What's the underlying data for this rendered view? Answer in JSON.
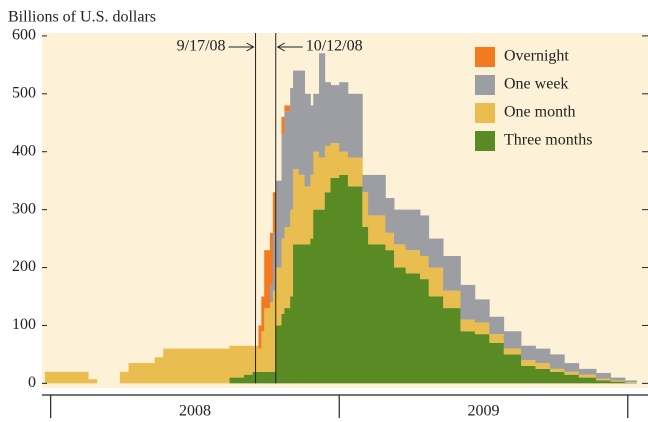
{
  "chart_data": {
    "type": "stacked_step_area",
    "y_label": "Billions of U.S. dollars",
    "x": [
      2007.98,
      2008.13,
      2008.16,
      2008.24,
      2008.27,
      2008.36,
      2008.39,
      2008.62,
      2008.67,
      2008.7,
      2008.72,
      2008.73,
      2008.74,
      2008.76,
      2008.77,
      2008.78,
      2008.8,
      2008.81,
      2008.83,
      2008.84,
      2008.86,
      2008.88,
      2008.9,
      2008.91,
      2008.93,
      2008.95,
      2008.97,
      2009.0,
      2009.03,
      2009.08,
      2009.1,
      2009.16,
      2009.19,
      2009.23,
      2009.28,
      2009.31,
      2009.36,
      2009.42,
      2009.47,
      2009.52,
      2009.57,
      2009.63,
      2009.68,
      2009.73,
      2009.78,
      2009.83,
      2009.89,
      2009.94,
      2009.99,
      2010.03
    ],
    "series": [
      {
        "name": "Overnight",
        "color": "#f47a20",
        "values": [
          0,
          0,
          0,
          0,
          0,
          0,
          0,
          0,
          0,
          0,
          40,
          60,
          100,
          90,
          70,
          0,
          30,
          10,
          0,
          0,
          0,
          0,
          0,
          0,
          0,
          0,
          0,
          0,
          0,
          0,
          0,
          0,
          0,
          0,
          0,
          0,
          0,
          0,
          0,
          0,
          0,
          0,
          0,
          0,
          0,
          0,
          0,
          0,
          0,
          0
        ]
      },
      {
        "name": "One week",
        "color": "#9d9ea3",
        "values": [
          0,
          0,
          0,
          0,
          0,
          0,
          0,
          0,
          0,
          0,
          0,
          0,
          0,
          30,
          100,
          150,
          180,
          200,
          210,
          170,
          180,
          160,
          120,
          100,
          180,
          110,
          100,
          120,
          110,
          30,
          70,
          60,
          60,
          70,
          70,
          50,
          60,
          60,
          40,
          30,
          30,
          25,
          25,
          25,
          15,
          10,
          10,
          5,
          3,
          0
        ]
      },
      {
        "name": "One month",
        "color": "#e9bd4f",
        "values": [
          20,
          7,
          0,
          20,
          35,
          45,
          60,
          55,
          50,
          45,
          40,
          70,
          110,
          120,
          140,
          100,
          130,
          140,
          150,
          130,
          120,
          100,
          110,
          100,
          90,
          80,
          60,
          40,
          50,
          60,
          50,
          30,
          40,
          40,
          40,
          50,
          30,
          20,
          20,
          15,
          10,
          10,
          10,
          5,
          5,
          5,
          3,
          2,
          1,
          0
        ]
      },
      {
        "name": "Three months",
        "color": "#5a8a24",
        "values": [
          0,
          0,
          0,
          0,
          0,
          0,
          0,
          10,
          15,
          20,
          20,
          20,
          20,
          20,
          20,
          100,
          120,
          130,
          150,
          240,
          240,
          240,
          250,
          300,
          300,
          330,
          355,
          360,
          340,
          270,
          240,
          230,
          200,
          190,
          180,
          150,
          130,
          90,
          85,
          70,
          50,
          30,
          25,
          20,
          15,
          10,
          5,
          3,
          1,
          0
        ]
      }
    ],
    "xlim": [
      2007.97,
      2010.07
    ],
    "xticks": [
      2008,
      2009,
      2010
    ],
    "x_labels": [
      {
        "value": 2008.5,
        "label": "2008"
      },
      {
        "value": 2009.5,
        "label": "2009"
      }
    ],
    "ylim": [
      -8,
      605
    ],
    "yticks": [
      0,
      100,
      200,
      300,
      400,
      500,
      600
    ],
    "annotations": [
      {
        "x": 2008.71,
        "label": "9/17/08"
      },
      {
        "x": 2008.78,
        "label": "10/12/08"
      }
    ],
    "legend": "upper right"
  }
}
